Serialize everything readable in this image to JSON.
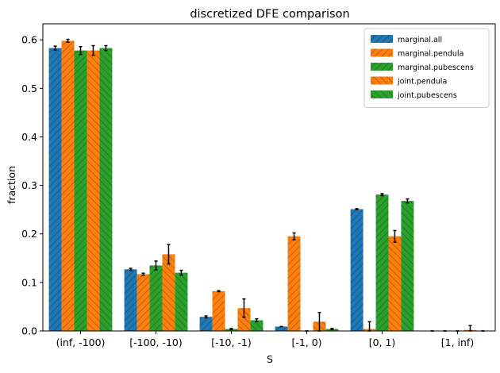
{
  "chart_data": {
    "type": "bar",
    "title": "discretized DFE comparison",
    "xlabel": "S",
    "ylabel": "fraction",
    "ylim": [
      0,
      0.633
    ],
    "yticks": [
      "0.0",
      "0.1",
      "0.2",
      "0.3",
      "0.4",
      "0.5",
      "0.6"
    ],
    "categories": [
      "(inf, -100)",
      "[-100, -10)",
      "[-10, -1)",
      "[-1, 0)",
      "[0, 1)",
      "[1, inf)"
    ],
    "legend_position": "top-right",
    "grid": false,
    "series": [
      {
        "name": "marginal.all",
        "color": "#1f77b4",
        "hatch": "////",
        "values": [
          0.583,
          0.127,
          0.029,
          0.009,
          0.251,
          0.0
        ],
        "errors": [
          0.004,
          0.002,
          0.002,
          0.0,
          0.001,
          0.0
        ]
      },
      {
        "name": "marginal.pendula",
        "color": "#ff7f0e",
        "hatch": "////",
        "values": [
          0.598,
          0.117,
          0.082,
          0.195,
          0.004,
          0.0
        ],
        "errors": [
          0.003,
          0.002,
          0.001,
          0.007,
          0.015,
          0.0
        ]
      },
      {
        "name": "marginal.pubescens",
        "color": "#2ca02c",
        "hatch": "////",
        "values": [
          0.578,
          0.135,
          0.004,
          0.0,
          0.281,
          0.0
        ],
        "errors": [
          0.008,
          0.009,
          0.001,
          0.0,
          0.002,
          0.0
        ]
      },
      {
        "name": "joint.pendula",
        "color": "#ff7f0e",
        "hatch": "\\\\\\\\",
        "values": [
          0.578,
          0.158,
          0.047,
          0.019,
          0.195,
          0.002
        ],
        "errors": [
          0.01,
          0.02,
          0.019,
          0.019,
          0.012,
          0.009
        ]
      },
      {
        "name": "joint.pubescens",
        "color": "#2ca02c",
        "hatch": "\\\\\\\\",
        "values": [
          0.583,
          0.12,
          0.022,
          0.004,
          0.268,
          0.0
        ],
        "errors": [
          0.005,
          0.005,
          0.003,
          0.001,
          0.004,
          0.0
        ]
      }
    ]
  }
}
